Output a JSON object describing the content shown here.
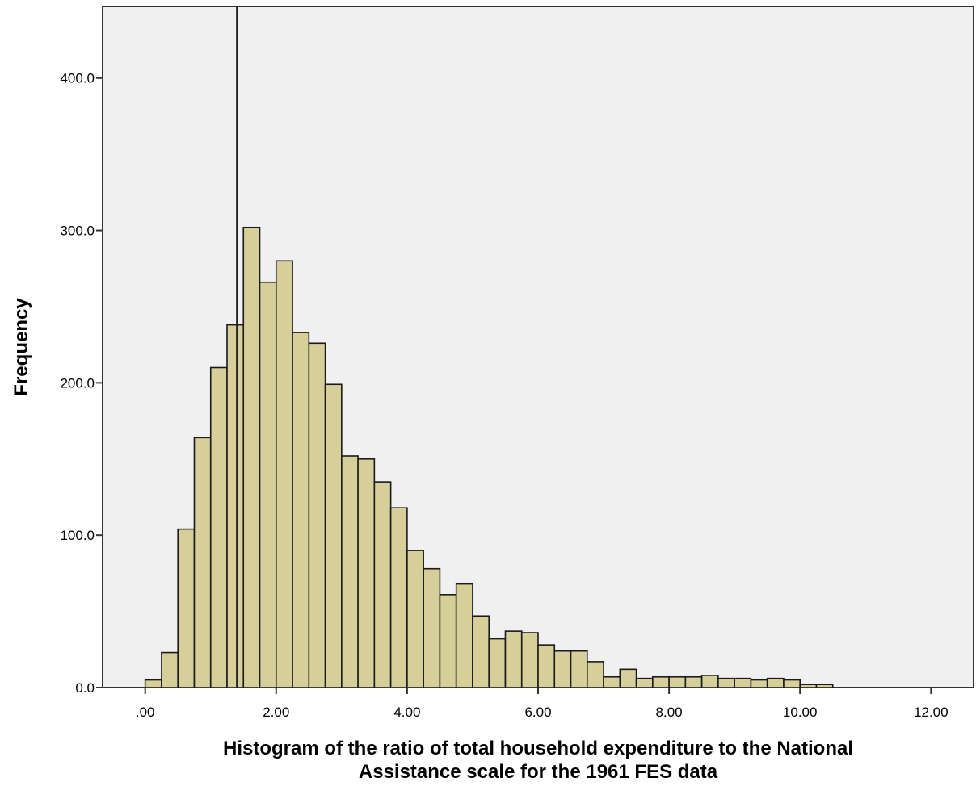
{
  "chart_data": {
    "type": "bar",
    "subtype": "histogram",
    "bin_width": 0.25,
    "bin_start": 0.0,
    "values": [
      5,
      23,
      104,
      164,
      210,
      238,
      302,
      266,
      280,
      233,
      226,
      199,
      152,
      150,
      135,
      118,
      90,
      78,
      61,
      68,
      47,
      32,
      37,
      36,
      28,
      24,
      24,
      17,
      7,
      12,
      6,
      7,
      7,
      7,
      8,
      6,
      6,
      5,
      6,
      5,
      2,
      2
    ],
    "xlim": [
      -0.65,
      12.65
    ],
    "ylim": [
      0,
      447
    ],
    "x_ticks": [
      0,
      2,
      4,
      6,
      8,
      10,
      12
    ],
    "x_tick_labels": [
      ".00",
      "2.00",
      "4.00",
      "6.00",
      "8.00",
      "10.00",
      "12.00"
    ],
    "y_ticks": [
      0,
      100,
      200,
      300,
      400
    ],
    "y_tick_labels": [
      "0.0",
      "100.0",
      "200.0",
      "300.0",
      "400.0"
    ],
    "reference_line_x": 1.4,
    "ylabel": "Frequency",
    "xlabel_lines": [
      "Histogram of the ratio of total household expenditure to the National",
      "Assistance scale for the 1961 FES data"
    ],
    "grid": false,
    "legend": "none",
    "colors": {
      "bar_fill": "#d6cf9a",
      "bar_stroke": "#1a1a1a",
      "plot_background": "#f0f0f0",
      "axis": "#333333",
      "reference_line": "#222222"
    }
  }
}
